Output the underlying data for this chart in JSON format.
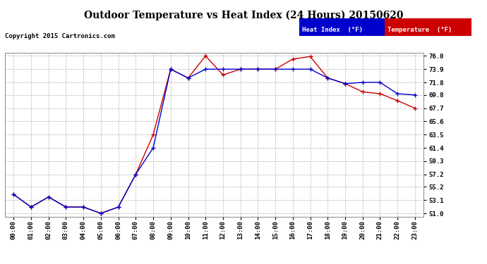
{
  "title": "Outdoor Temperature vs Heat Index (24 Hours) 20150620",
  "copyright": "Copyright 2015 Cartronics.com",
  "background_color": "#ffffff",
  "plot_bg_color": "#ffffff",
  "grid_color": "#aaaaaa",
  "x_labels": [
    "00:00",
    "01:00",
    "02:00",
    "03:00",
    "04:00",
    "05:00",
    "06:00",
    "07:00",
    "08:00",
    "09:00",
    "10:00",
    "11:00",
    "12:00",
    "13:00",
    "14:00",
    "15:00",
    "16:00",
    "17:00",
    "18:00",
    "19:00",
    "20:00",
    "21:00",
    "22:00",
    "23:00"
  ],
  "y_ticks": [
    51.0,
    53.1,
    55.2,
    57.2,
    59.3,
    61.4,
    63.5,
    65.6,
    67.7,
    69.8,
    71.8,
    73.9,
    76.0
  ],
  "temperature": [
    54.0,
    52.0,
    53.6,
    52.0,
    52.0,
    51.0,
    52.0,
    57.2,
    63.5,
    73.9,
    72.5,
    76.0,
    73.0,
    73.9,
    73.9,
    73.9,
    75.5,
    75.9,
    72.5,
    71.6,
    70.3,
    70.0,
    68.9,
    67.7
  ],
  "heat_index": [
    54.0,
    52.0,
    53.6,
    52.0,
    52.0,
    51.0,
    52.0,
    57.2,
    61.4,
    73.9,
    72.5,
    73.9,
    73.9,
    73.9,
    73.9,
    73.9,
    73.9,
    73.9,
    72.5,
    71.6,
    71.8,
    71.8,
    70.0,
    69.8
  ],
  "temp_color": "#cc0000",
  "hi_color": "#0000cc",
  "legend_hi_bg": "#0000cc",
  "legend_temp_bg": "#cc0000",
  "ylim_min": 50.5,
  "ylim_max": 76.5,
  "figwidth": 6.9,
  "figheight": 3.75,
  "dpi": 100
}
